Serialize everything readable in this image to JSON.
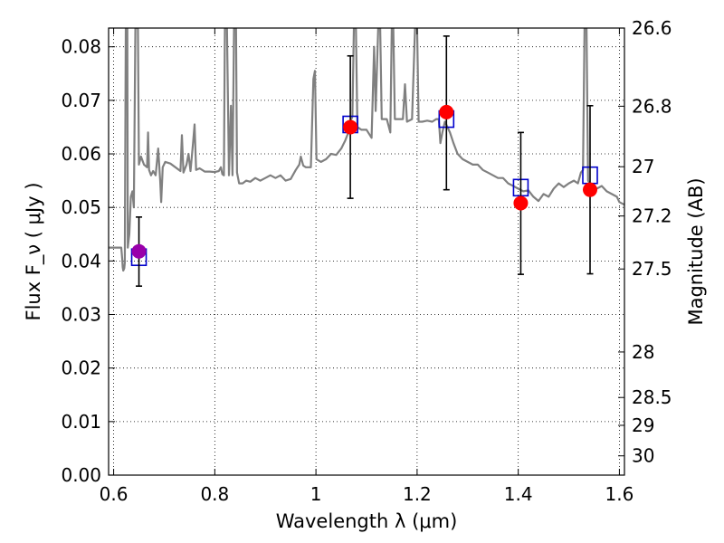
{
  "chart_data": {
    "type": "scatter",
    "title": "",
    "xlabel": "Wavelength  λ (μm)",
    "ylabel": "Flux  F_ν  ( μJy )",
    "ylabel_right": "Magnitude (AB)",
    "xlim": [
      0.59,
      1.61
    ],
    "ylim": [
      0.0,
      0.0835
    ],
    "grid": true,
    "x_ticks": [
      0.6,
      0.8,
      1.0,
      1.2,
      1.4,
      1.6
    ],
    "x_tick_labels": [
      "0.6",
      "0.8",
      "1",
      "1.2",
      "1.4",
      "1.6"
    ],
    "y_ticks": [
      0.0,
      0.01,
      0.02,
      0.03,
      0.04,
      0.05,
      0.06,
      0.07,
      0.08
    ],
    "y_tick_labels": [
      "0.00",
      "0.01",
      "0.02",
      "0.03",
      "0.04",
      "0.05",
      "0.06",
      "0.07",
      "0.08"
    ],
    "right_ticks": [
      {
        "label": "26.6",
        "flux": 0.0835
      },
      {
        "label": "26.8",
        "flux": 0.0689
      },
      {
        "label": "27",
        "flux": 0.0576
      },
      {
        "label": "27.2",
        "flux": 0.0484
      },
      {
        "label": "27.5",
        "flux": 0.0385
      },
      {
        "label": "28",
        "flux": 0.023
      },
      {
        "label": "28.5",
        "flux": 0.0145
      },
      {
        "label": "29",
        "flux": 0.0093
      },
      {
        "label": "30",
        "flux": 0.0036
      }
    ],
    "series": [
      {
        "marker": "square-open",
        "color": "#0000cc",
        "points": [
          {
            "x": 0.65,
            "y": 0.0407
          },
          {
            "x": 1.068,
            "y": 0.0655
          },
          {
            "x": 1.258,
            "y": 0.0665
          },
          {
            "x": 1.405,
            "y": 0.0537
          },
          {
            "x": 1.542,
            "y": 0.056
          }
        ]
      },
      {
        "marker": "circle",
        "color": "#ff0000",
        "error_color": "#000000",
        "points": [
          {
            "x": 1.068,
            "y": 0.065,
            "ylo": 0.0517,
            "yhi": 0.0783
          },
          {
            "x": 1.258,
            "y": 0.0678,
            "ylo": 0.0533,
            "yhi": 0.082
          },
          {
            "x": 1.405,
            "y": 0.0508,
            "ylo": 0.0375,
            "yhi": 0.064
          },
          {
            "x": 1.542,
            "y": 0.0533,
            "ylo": 0.0376,
            "yhi": 0.069
          }
        ]
      },
      {
        "marker": "circle",
        "color": "#9900aa",
        "error_color": "#000000",
        "points": [
          {
            "x": 0.65,
            "y": 0.0418,
            "ylo": 0.0353,
            "yhi": 0.0482
          }
        ]
      },
      {
        "marker": "line",
        "color": "#808080",
        "points": [
          [
            0.59,
            0.0425
          ],
          [
            0.615,
            0.0425
          ],
          [
            0.617,
            0.0403
          ],
          [
            0.618,
            0.0388
          ],
          [
            0.619,
            0.0382
          ],
          [
            0.621,
            0.0386
          ],
          [
            0.622,
            0.0396
          ],
          [
            0.624,
            0.0835
          ],
          [
            0.627,
            0.0835
          ],
          [
            0.628,
            0.0425
          ],
          [
            0.631,
            0.045
          ],
          [
            0.634,
            0.052
          ],
          [
            0.637,
            0.053
          ],
          [
            0.64,
            0.05
          ],
          [
            0.643,
            0.0835
          ],
          [
            0.648,
            0.0835
          ],
          [
            0.65,
            0.058
          ],
          [
            0.654,
            0.0595
          ],
          [
            0.66,
            0.058
          ],
          [
            0.666,
            0.0575
          ],
          [
            0.668,
            0.064
          ],
          [
            0.67,
            0.057
          ],
          [
            0.674,
            0.056
          ],
          [
            0.678,
            0.0568
          ],
          [
            0.683,
            0.056
          ],
          [
            0.688,
            0.061
          ],
          [
            0.692,
            0.055
          ],
          [
            0.694,
            0.051
          ],
          [
            0.697,
            0.0575
          ],
          [
            0.702,
            0.0585
          ],
          [
            0.712,
            0.0582
          ],
          [
            0.722,
            0.0575
          ],
          [
            0.732,
            0.0568
          ],
          [
            0.735,
            0.0635
          ],
          [
            0.738,
            0.0565
          ],
          [
            0.744,
            0.058
          ],
          [
            0.748,
            0.06
          ],
          [
            0.752,
            0.0568
          ],
          [
            0.757,
            0.062
          ],
          [
            0.76,
            0.0655
          ],
          [
            0.763,
            0.057
          ],
          [
            0.77,
            0.0573
          ],
          [
            0.78,
            0.0567
          ],
          [
            0.79,
            0.0567
          ],
          [
            0.8,
            0.0566
          ],
          [
            0.808,
            0.0568
          ],
          [
            0.812,
            0.0575
          ],
          [
            0.815,
            0.0562
          ],
          [
            0.818,
            0.056
          ],
          [
            0.82,
            0.0835
          ],
          [
            0.824,
            0.0835
          ],
          [
            0.826,
            0.07
          ],
          [
            0.828,
            0.056
          ],
          [
            0.832,
            0.069
          ],
          [
            0.835,
            0.056
          ],
          [
            0.838,
            0.0835
          ],
          [
            0.842,
            0.0835
          ],
          [
            0.844,
            0.0565
          ],
          [
            0.848,
            0.0545
          ],
          [
            0.855,
            0.0545
          ],
          [
            0.862,
            0.055
          ],
          [
            0.87,
            0.0548
          ],
          [
            0.88,
            0.0555
          ],
          [
            0.89,
            0.055
          ],
          [
            0.9,
            0.0555
          ],
          [
            0.91,
            0.056
          ],
          [
            0.92,
            0.0555
          ],
          [
            0.93,
            0.056
          ],
          [
            0.94,
            0.055
          ],
          [
            0.95,
            0.0553
          ],
          [
            0.96,
            0.057
          ],
          [
            0.967,
            0.058
          ],
          [
            0.97,
            0.0595
          ],
          [
            0.975,
            0.0578
          ],
          [
            0.98,
            0.0575
          ],
          [
            0.99,
            0.0575
          ],
          [
            0.995,
            0.074
          ],
          [
            0.998,
            0.0755
          ],
          [
            1.001,
            0.059
          ],
          [
            1.01,
            0.0585
          ],
          [
            1.02,
            0.059
          ],
          [
            1.03,
            0.06
          ],
          [
            1.04,
            0.0598
          ],
          [
            1.05,
            0.061
          ],
          [
            1.058,
            0.0625
          ],
          [
            1.064,
            0.064
          ],
          [
            1.068,
            0.066
          ],
          [
            1.072,
            0.067
          ],
          [
            1.075,
            0.0835
          ],
          [
            1.079,
            0.0835
          ],
          [
            1.082,
            0.065
          ],
          [
            1.09,
            0.0645
          ],
          [
            1.1,
            0.0645
          ],
          [
            1.11,
            0.063
          ],
          [
            1.115,
            0.08
          ],
          [
            1.118,
            0.068
          ],
          [
            1.123,
            0.0835
          ],
          [
            1.127,
            0.0835
          ],
          [
            1.13,
            0.0665
          ],
          [
            1.14,
            0.0665
          ],
          [
            1.147,
            0.064
          ],
          [
            1.15,
            0.0835
          ],
          [
            1.153,
            0.0835
          ],
          [
            1.156,
            0.0665
          ],
          [
            1.166,
            0.0665
          ],
          [
            1.172,
            0.0665
          ],
          [
            1.176,
            0.073
          ],
          [
            1.18,
            0.066
          ],
          [
            1.19,
            0.0665
          ],
          [
            1.196,
            0.0835
          ],
          [
            1.2,
            0.0835
          ],
          [
            1.203,
            0.066
          ],
          [
            1.21,
            0.066
          ],
          [
            1.22,
            0.0662
          ],
          [
            1.23,
            0.066
          ],
          [
            1.238,
            0.0665
          ],
          [
            1.243,
            0.0665
          ],
          [
            1.246,
            0.062
          ],
          [
            1.25,
            0.064
          ],
          [
            1.255,
            0.066
          ],
          [
            1.26,
            0.065
          ],
          [
            1.265,
            0.064
          ],
          [
            1.272,
            0.062
          ],
          [
            1.28,
            0.06
          ],
          [
            1.29,
            0.059
          ],
          [
            1.3,
            0.0585
          ],
          [
            1.31,
            0.058
          ],
          [
            1.32,
            0.058
          ],
          [
            1.33,
            0.057
          ],
          [
            1.34,
            0.0565
          ],
          [
            1.35,
            0.056
          ],
          [
            1.36,
            0.0555
          ],
          [
            1.37,
            0.0555
          ],
          [
            1.38,
            0.0545
          ],
          [
            1.39,
            0.054
          ],
          [
            1.4,
            0.0535
          ],
          [
            1.41,
            0.053
          ],
          [
            1.42,
            0.0532
          ],
          [
            1.43,
            0.052
          ],
          [
            1.44,
            0.0512
          ],
          [
            1.45,
            0.0525
          ],
          [
            1.46,
            0.052
          ],
          [
            1.47,
            0.0535
          ],
          [
            1.48,
            0.0545
          ],
          [
            1.49,
            0.0538
          ],
          [
            1.5,
            0.0545
          ],
          [
            1.51,
            0.055
          ],
          [
            1.518,
            0.0545
          ],
          [
            1.524,
            0.0565
          ],
          [
            1.528,
            0.057
          ],
          [
            1.531,
            0.0835
          ],
          [
            1.535,
            0.0835
          ],
          [
            1.538,
            0.055
          ],
          [
            1.545,
            0.054
          ],
          [
            1.555,
            0.0535
          ],
          [
            1.565,
            0.054
          ],
          [
            1.575,
            0.053
          ],
          [
            1.585,
            0.0525
          ],
          [
            1.595,
            0.052
          ],
          [
            1.6,
            0.051
          ],
          [
            1.61,
            0.0505
          ]
        ]
      }
    ]
  }
}
